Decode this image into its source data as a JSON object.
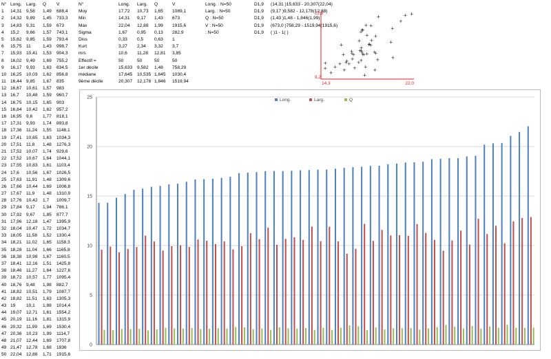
{
  "table": {
    "headers": [
      "N°",
      "Long.",
      "Larg.",
      "Q",
      "V"
    ],
    "rows": [
      [
        "1",
        "14,31",
        "9,58",
        "1,49",
        "688,4"
      ],
      [
        "2",
        "14,32",
        "9,89",
        "1,45",
        "733,3"
      ],
      [
        "3",
        "14,83",
        "9,31",
        "1,59",
        "673"
      ],
      [
        "4",
        "15,2",
        "9,66",
        "1,57",
        "743,1"
      ],
      [
        "5",
        "15,62",
        "9,85",
        "1,59",
        "793,4"
      ],
      [
        "6",
        "15,75",
        "11",
        "1,43",
        "998,7"
      ],
      [
        "7",
        "15,93",
        "10,41",
        "1,53",
        "904,3"
      ],
      [
        "8",
        "16,02",
        "9,49",
        "1,69",
        "755,2"
      ],
      [
        "9",
        "16,17",
        "9,93",
        "1,63",
        "834,5"
      ],
      [
        "10",
        "16,25",
        "10,03",
        "1,62",
        "856,8"
      ],
      [
        "11",
        "16,44",
        "9,85",
        "1,67",
        "835"
      ],
      [
        "12",
        "16,67",
        "10,61",
        "1,57",
        "983"
      ],
      [
        "13",
        "16,7",
        "10,48",
        "1,59",
        "960,7"
      ],
      [
        "14",
        "16,75",
        "10,15",
        "1,65",
        "903"
      ],
      [
        "15",
        "16,84",
        "10,42",
        "1,62",
        "957,2"
      ],
      [
        "16",
        "16,95",
        "9,6",
        "1,77",
        "818,1"
      ],
      [
        "17",
        "17,31",
        "9,93",
        "1,74",
        "893,8"
      ],
      [
        "18",
        "17,36",
        "11,24",
        "1,55",
        "1148,1"
      ],
      [
        "19",
        "17,41",
        "10,65",
        "1,63",
        "1034,3"
      ],
      [
        "20",
        "17,51",
        "11,8",
        "1,48",
        "1276,3"
      ],
      [
        "21",
        "17,52",
        "10,07",
        "1,74",
        "929,6"
      ],
      [
        "22",
        "17,52",
        "10,67",
        "1,64",
        "1044,1"
      ],
      [
        "23",
        "17,55",
        "10,83",
        "1,61",
        "1103,4"
      ],
      [
        "24",
        "17,6",
        "10,56",
        "1,67",
        "1026,5"
      ],
      [
        "25",
        "17,63",
        "11,91",
        "1,48",
        "1309,6"
      ],
      [
        "26",
        "17,66",
        "10,44",
        "1,69",
        "1006,8"
      ],
      [
        "27",
        "17,67",
        "11,9",
        "1,48",
        "1310,9"
      ],
      [
        "28",
        "17,76",
        "10,42",
        "1,7",
        "1009,7"
      ],
      [
        "29",
        "17,84",
        "9,17",
        "1,94",
        "786,1"
      ],
      [
        "30",
        "17,92",
        "9,67",
        "1,85",
        "877,7"
      ],
      [
        "31",
        "17,96",
        "12,18",
        "1,47",
        "1395,9"
      ],
      [
        "32",
        "18,04",
        "10,47",
        "1,72",
        "1034,7"
      ],
      [
        "33",
        "18,05",
        "11,58",
        "1,52",
        "1330,4"
      ],
      [
        "34",
        "18,21",
        "11,02",
        "1,65",
        "1158,3"
      ],
      [
        "35",
        "18,28",
        "11,04",
        "1,66",
        "1165,8"
      ],
      [
        "36",
        "18,38",
        "10,98",
        "1,67",
        "1160,5"
      ],
      [
        "37",
        "18,41",
        "12,16",
        "1,51",
        "1425,8"
      ],
      [
        "38",
        "18,46",
        "11,27",
        "1,64",
        "1227,6"
      ],
      [
        "39",
        "18,72",
        "10,57",
        "1,77",
        "1095,4"
      ],
      [
        "40",
        "18,76",
        "9,48",
        "1,98",
        "882,7"
      ],
      [
        "41",
        "18,82",
        "10,51",
        "1,79",
        "1087,7"
      ],
      [
        "42",
        "18,82",
        "11,51",
        "1,63",
        "1305,3"
      ],
      [
        "43",
        "19",
        "10,1",
        "1,88",
        "1014,4"
      ],
      [
        "44",
        "19,07",
        "12,71",
        "1,61",
        "1554,2"
      ],
      [
        "45",
        "20,19",
        "11,16",
        "1,81",
        "1315,9"
      ],
      [
        "46",
        "20,32",
        "11,99",
        "1,69",
        "1530,4"
      ],
      [
        "47",
        "20,36",
        "10,23",
        "1,99",
        "1114,7"
      ],
      [
        "48",
        "21,07",
        "12,44",
        "1,69",
        "1707,8"
      ],
      [
        "49",
        "21,47",
        "12,78",
        "1,68",
        "1836"
      ],
      [
        "50",
        "22,04",
        "12,88",
        "1,71",
        "1915,6"
      ]
    ]
  },
  "stats": {
    "headers": [
      "N°",
      "Long.",
      "Larg.",
      "Q",
      "V"
    ],
    "rows": [
      [
        "Moy",
        "17,72",
        "10,73",
        "1,65",
        "1089,1"
      ],
      [
        "Min",
        "14,31",
        "9,17",
        "1,43",
        "673"
      ],
      [
        "Max",
        "22,04",
        "12,88",
        "1,99",
        "1915,6"
      ],
      [
        "Sigma",
        "1,67",
        "0,95",
        "0,13",
        "282,9"
      ],
      [
        "Diss",
        "0,33",
        "0,5",
        "0,63",
        "1"
      ],
      [
        "Kurt",
        "3,27",
        "2,34",
        "3,32",
        "3,7"
      ],
      [
        "m/s",
        "10,6",
        "11,28",
        "12,81",
        "3,85"
      ],
      [
        "Effectif =",
        "50",
        "50",
        "50",
        "50"
      ],
      [
        "1er décile",
        "15,633",
        "9,582",
        "1,48",
        "758,29"
      ],
      [
        "médiane",
        "17,645",
        "10,535",
        "1,645",
        "1030,4"
      ],
      [
        "9ème décile",
        "20,307",
        "12,178",
        "1,846",
        "1519,94"
      ]
    ]
  },
  "ci": {
    "rows": [
      [
        "Long. : N=50",
        "D1,9",
        "(14,31 )15,633 - 20,307(22,04)"
      ],
      [
        "Larg. : N=50",
        "D1,9",
        "(9,17 )9,582 - 12,178(12,88)"
      ],
      [
        "Q : N=50",
        "D1,9",
        "(1,43 )1,48 - 1,846(1,99)"
      ],
      [
        "V : N=50",
        "D1,9",
        "(673,0 )758,29 - 1519,94(1915,6)"
      ],
      [
        ": N=50",
        "D1,9",
        "( )1 - 1( )"
      ]
    ]
  },
  "scatter": {
    "y_max_label": "12,9",
    "y_min_label": "9,2",
    "x_min_label": "14,3",
    "x_max_label": "22,0",
    "xlim": [
      14.3,
      22.0
    ],
    "ylim": [
      9.2,
      12.9
    ],
    "marker": "+",
    "axis_color": "#e02020"
  },
  "chart_data": [
    {
      "type": "scatter",
      "x_field": "Long.",
      "y_field": "Larg.",
      "xlim": [
        14.3,
        22.0
      ],
      "ylim": [
        9.2,
        12.9
      ]
    },
    {
      "type": "bar",
      "categories": [
        "1",
        "2",
        "3",
        "4",
        "5",
        "6",
        "7",
        "8",
        "9",
        "10",
        "11",
        "12",
        "13",
        "14",
        "15",
        "16",
        "17",
        "18",
        "19",
        "20",
        "21",
        "22",
        "23",
        "24",
        "25",
        "26",
        "27",
        "28",
        "29",
        "30",
        "31",
        "32",
        "33",
        "34",
        "35",
        "36",
        "37",
        "38",
        "39",
        "40",
        "41",
        "42",
        "43",
        "44",
        "45",
        "46",
        "47",
        "48",
        "49",
        "50"
      ],
      "series": [
        {
          "name": "Long.",
          "color": "#4f81bd",
          "values": [
            14.31,
            14.32,
            14.83,
            15.2,
            15.62,
            15.75,
            15.93,
            16.02,
            16.17,
            16.25,
            16.44,
            16.67,
            16.7,
            16.75,
            16.84,
            16.95,
            17.31,
            17.36,
            17.41,
            17.51,
            17.52,
            17.52,
            17.55,
            17.6,
            17.63,
            17.66,
            17.67,
            17.76,
            17.84,
            17.92,
            17.96,
            18.04,
            18.05,
            18.21,
            18.28,
            18.38,
            18.41,
            18.46,
            18.72,
            18.76,
            18.82,
            18.82,
            19,
            19.07,
            20.19,
            20.32,
            20.36,
            21.07,
            21.47,
            22.04
          ]
        },
        {
          "name": "Larg.",
          "color": "#c0504d",
          "values": [
            9.58,
            9.89,
            9.31,
            9.66,
            9.85,
            11,
            10.41,
            9.49,
            9.93,
            10.03,
            9.85,
            10.61,
            10.48,
            10.15,
            10.42,
            9.6,
            9.93,
            11.24,
            10.65,
            11.8,
            10.07,
            10.67,
            10.83,
            10.56,
            11.91,
            10.44,
            11.9,
            10.42,
            9.17,
            9.67,
            12.18,
            10.47,
            11.58,
            11.02,
            11.04,
            10.98,
            12.16,
            11.27,
            10.57,
            9.48,
            10.51,
            11.51,
            10.1,
            12.71,
            11.16,
            11.99,
            10.23,
            12.44,
            12.78,
            12.88
          ]
        },
        {
          "name": "Q",
          "color": "#9bbb59",
          "values": [
            1.49,
            1.45,
            1.59,
            1.57,
            1.59,
            1.43,
            1.53,
            1.69,
            1.63,
            1.62,
            1.67,
            1.57,
            1.59,
            1.65,
            1.62,
            1.77,
            1.74,
            1.55,
            1.63,
            1.48,
            1.74,
            1.64,
            1.61,
            1.67,
            1.48,
            1.69,
            1.48,
            1.7,
            1.94,
            1.85,
            1.47,
            1.72,
            1.52,
            1.65,
            1.66,
            1.67,
            1.51,
            1.64,
            1.77,
            1.98,
            1.79,
            1.63,
            1.88,
            1.61,
            1.81,
            1.69,
            1.99,
            1.69,
            1.68,
            1.71
          ]
        }
      ],
      "ylim": [
        0,
        25
      ],
      "yticks": [
        "0",
        "5",
        "10",
        "15",
        "20",
        "25"
      ],
      "grid": true,
      "legend": "top-center"
    }
  ]
}
